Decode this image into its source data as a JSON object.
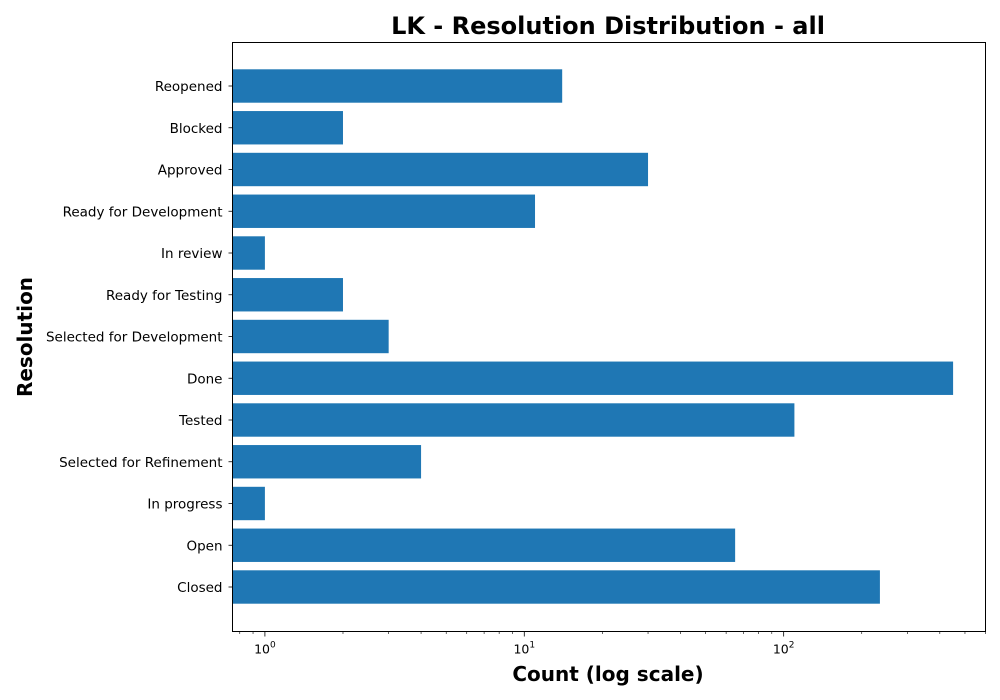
{
  "chart_data": {
    "type": "bar",
    "orientation": "horizontal",
    "title": "LK - Resolution Distribution - all",
    "xlabel": "Count (log scale)",
    "ylabel": "Resolution",
    "xscale": "log",
    "xlim": [
      0.75,
      600
    ],
    "xticks": [
      {
        "value": 1,
        "base": "10",
        "exp": "0"
      },
      {
        "value": 10,
        "base": "10",
        "exp": "1"
      },
      {
        "value": 100,
        "base": "10",
        "exp": "2"
      }
    ],
    "categories": [
      "Reopened",
      "Blocked",
      "Approved",
      "Ready for Development",
      "In review",
      "Ready for Testing",
      "Selected for Development",
      "Done",
      "Tested",
      "Selected for Refinement",
      "In progress",
      "Open",
      "Closed"
    ],
    "values": [
      14,
      2,
      30,
      11,
      1,
      2,
      3,
      450,
      110,
      4,
      1,
      65,
      235
    ],
    "bar_color": "#1f77b4",
    "grid": false,
    "legend": "none"
  }
}
